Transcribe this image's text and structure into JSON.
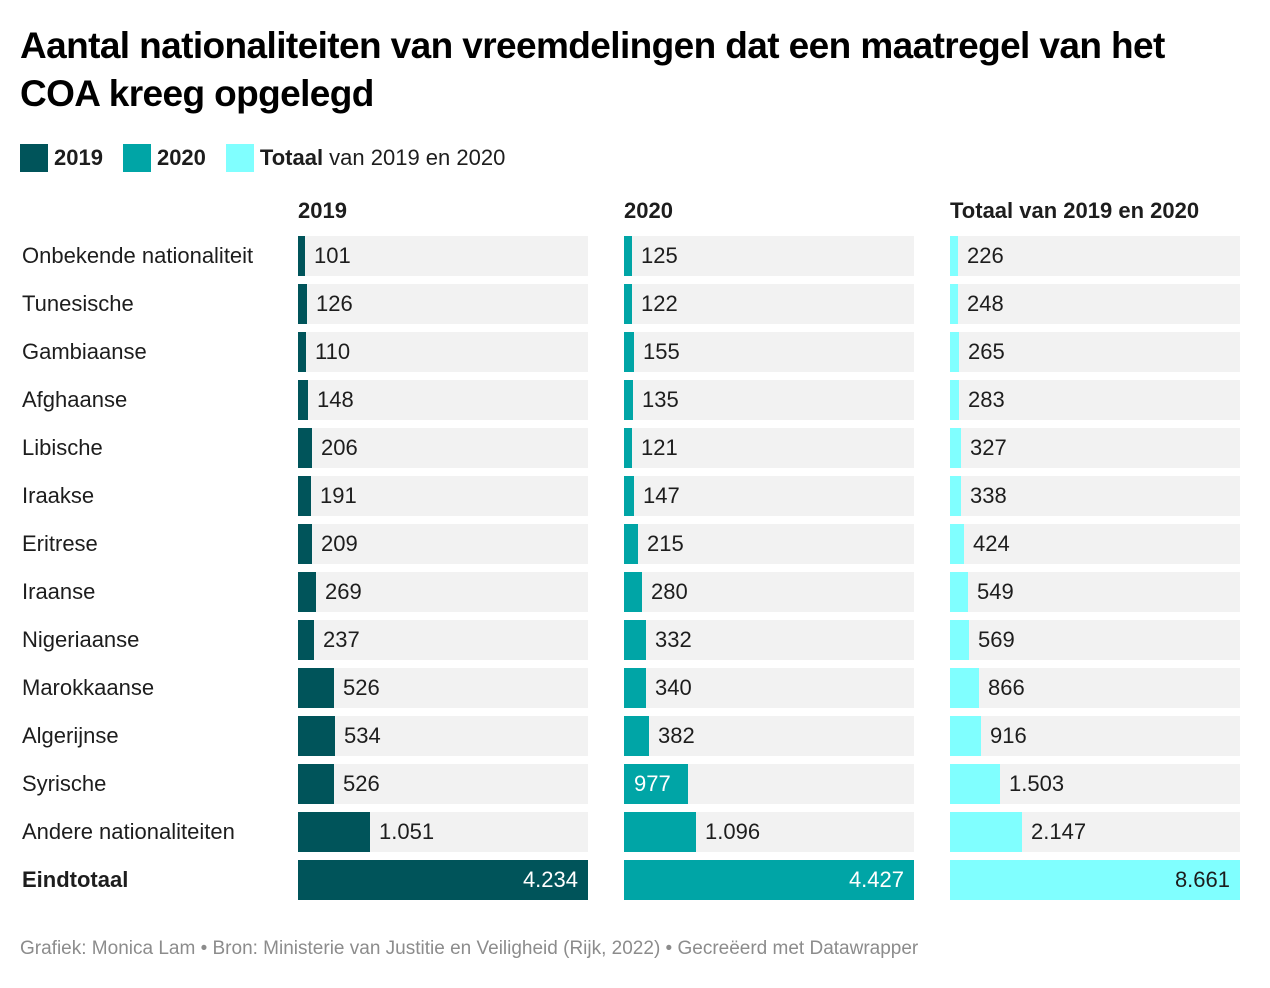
{
  "title": "Aantal nationaliteiten van vreemdelingen dat een maatregel van het COA kreeg opgelegd",
  "legend": [
    {
      "bold": "2019",
      "rest": "",
      "color": "#00545a"
    },
    {
      "bold": "2020",
      "rest": "",
      "color": "#00a5a6"
    },
    {
      "bold": "Totaal",
      "rest": " van 2019 en 2020",
      "color": "#80ffff"
    }
  ],
  "footer": "Grafiek: Monica Lam • Bron: Ministerie van Justitie en Veiligheid (Rijk, 2022) • Gecreëerd met Datawrapper",
  "chart_data": {
    "type": "bar",
    "orientation": "horizontal",
    "title": "Aantal nationaliteiten van vreemdelingen dat een maatregel van het COA kreeg opgelegd",
    "categories": [
      "Onbekende nationaliteit",
      "Tunesische",
      "Gambiaanse",
      "Afghaanse",
      "Libische",
      "Iraakse",
      "Eritrese",
      "Iraanse",
      "Nigeriaanse",
      "Marokkaanse",
      "Algerijnse",
      "Syrische",
      "Andere nationaliteiten",
      "Eindtotaal"
    ],
    "total_row_label": "Eindtotaal",
    "series": [
      {
        "name": "2019",
        "header": "2019",
        "color": "#00545a",
        "values": [
          101,
          126,
          110,
          148,
          206,
          191,
          209,
          269,
          237,
          526,
          534,
          526,
          1051,
          4234
        ],
        "labels": [
          "101",
          "126",
          "110",
          "148",
          "206",
          "191",
          "209",
          "269",
          "237",
          "526",
          "534",
          "526",
          "1.051",
          "4.234"
        ]
      },
      {
        "name": "2020",
        "header": "2020",
        "color": "#00a5a6",
        "values": [
          125,
          122,
          155,
          135,
          121,
          147,
          215,
          280,
          332,
          340,
          382,
          977,
          1096,
          4427
        ],
        "labels": [
          "125",
          "122",
          "155",
          "135",
          "121",
          "147",
          "215",
          "280",
          "332",
          "340",
          "382",
          "977",
          "1.096",
          "4.427"
        ]
      },
      {
        "name": "Totaal van 2019 en 2020",
        "header": "Totaal van 2019 en 2020",
        "color": "#80ffff",
        "values": [
          226,
          248,
          265,
          283,
          327,
          338,
          424,
          549,
          569,
          866,
          916,
          1503,
          2147,
          8661
        ],
        "labels": [
          "226",
          "248",
          "265",
          "283",
          "327",
          "338",
          "424",
          "549",
          "569",
          "866",
          "916",
          "1.503",
          "2.147",
          "8.661"
        ]
      }
    ],
    "track_color": "#f2f2f2",
    "xlabel": "",
    "ylabel": "",
    "grid": false,
    "legend_position": "top-left"
  }
}
